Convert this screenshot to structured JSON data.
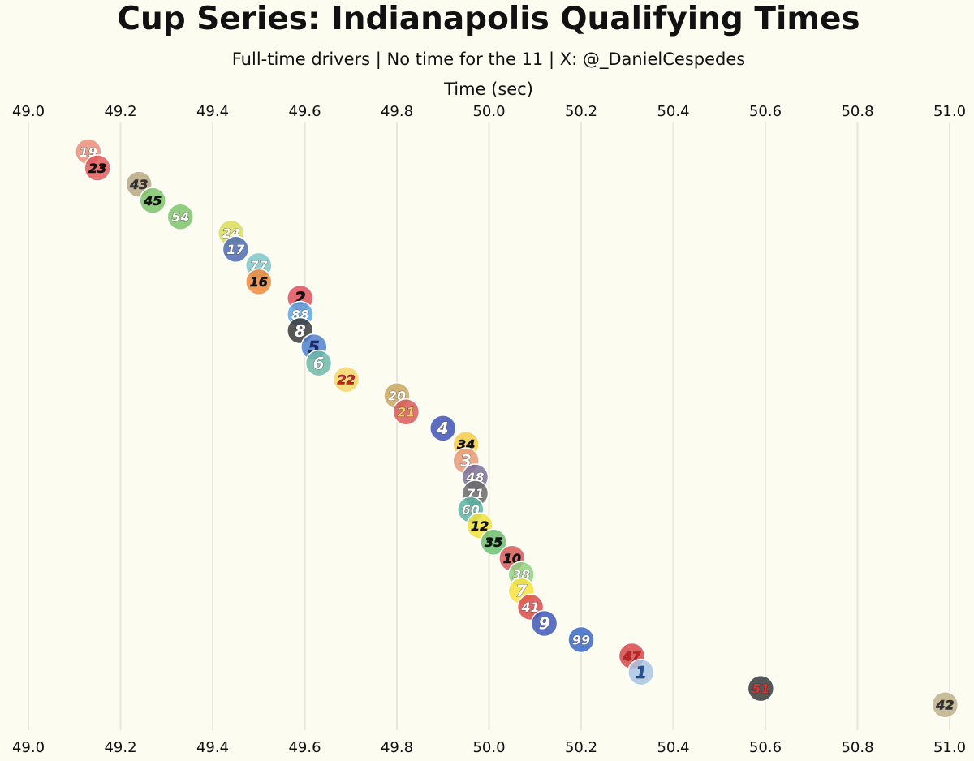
{
  "chart_data": {
    "type": "scatter",
    "title": "Cup Series: Indianapolis Qualifying Times",
    "subtitle": "Full-time drivers | No time for the 11 | X: @_DanielCespedes",
    "xlabel": "Time (sec)",
    "ylabel": "",
    "xlim": [
      49.0,
      51.0
    ],
    "x_ticks": [
      "49.0",
      "49.2",
      "49.4",
      "49.6",
      "49.8",
      "50.0",
      "50.2",
      "50.4",
      "50.6",
      "50.8",
      "51.0"
    ],
    "grid": true,
    "axis_position": "top and bottom",
    "points": [
      {
        "label": "19",
        "x": 49.13,
        "color": "#e8907a",
        "text_color": "#ffffff"
      },
      {
        "label": "23",
        "x": 49.15,
        "color": "#e05a5a",
        "text_color": "#111111"
      },
      {
        "label": "43",
        "x": 49.24,
        "color": "#b8a882",
        "text_color": "#333333"
      },
      {
        "label": "45",
        "x": 49.27,
        "color": "#7cc46a",
        "text_color": "#111111"
      },
      {
        "label": "54",
        "x": 49.33,
        "color": "#7cc46a",
        "text_color": "#ffffff"
      },
      {
        "label": "24",
        "x": 49.44,
        "color": "#d9dc5c",
        "text_color": "#ffffff"
      },
      {
        "label": "17",
        "x": 49.45,
        "color": "#4e6bb4",
        "text_color": "#ffffff"
      },
      {
        "label": "77",
        "x": 49.5,
        "color": "#7ec8c8",
        "text_color": "#ffffff"
      },
      {
        "label": "16",
        "x": 49.5,
        "color": "#ee8a3c",
        "text_color": "#111111"
      },
      {
        "label": "2",
        "x": 49.59,
        "color": "#e0505a",
        "text_color": "#111111"
      },
      {
        "label": "88",
        "x": 49.59,
        "color": "#5aa7e8",
        "text_color": "#ffffff"
      },
      {
        "label": "8",
        "x": 49.59,
        "color": "#3a3a3a",
        "text_color": "#ffffff"
      },
      {
        "label": "5",
        "x": 49.62,
        "color": "#4e80d0",
        "text_color": "#1a2a70"
      },
      {
        "label": "6",
        "x": 49.63,
        "color": "#6fb8a8",
        "text_color": "#ffffff"
      },
      {
        "label": "22",
        "x": 49.69,
        "color": "#f6d66a",
        "text_color": "#cc2222"
      },
      {
        "label": "20",
        "x": 49.8,
        "color": "#c8a860",
        "text_color": "#ffffff"
      },
      {
        "label": "21",
        "x": 49.82,
        "color": "#d85a5a",
        "text_color": "#f0d060"
      },
      {
        "label": "4",
        "x": 49.9,
        "color": "#3e52b8",
        "text_color": "#ffffff"
      },
      {
        "label": "34",
        "x": 49.95,
        "color": "#f8cc4a",
        "text_color": "#111111"
      },
      {
        "label": "3",
        "x": 49.95,
        "color": "#e89a7a",
        "text_color": "#ffffff"
      },
      {
        "label": "48",
        "x": 49.97,
        "color": "#7d6e9a",
        "text_color": "#ffffff"
      },
      {
        "label": "71",
        "x": 49.97,
        "color": "#6a6a6a",
        "text_color": "#ffffff"
      },
      {
        "label": "60",
        "x": 49.96,
        "color": "#5ab4a4",
        "text_color": "#ffffff"
      },
      {
        "label": "12",
        "x": 49.98,
        "color": "#f0e040",
        "text_color": "#111111"
      },
      {
        "label": "35",
        "x": 50.01,
        "color": "#6cc070",
        "text_color": "#111111"
      },
      {
        "label": "10",
        "x": 50.05,
        "color": "#d65a5a",
        "text_color": "#111111"
      },
      {
        "label": "38",
        "x": 50.07,
        "color": "#90d480",
        "text_color": "#ffffff"
      },
      {
        "label": "7",
        "x": 50.07,
        "color": "#f8e040",
        "text_color": "#ffffff"
      },
      {
        "label": "41",
        "x": 50.09,
        "color": "#dc4a4a",
        "text_color": "#ffffff"
      },
      {
        "label": "9",
        "x": 50.12,
        "color": "#4058b8",
        "text_color": "#ffffff"
      },
      {
        "label": "99",
        "x": 50.2,
        "color": "#3a68c8",
        "text_color": "#ffffff"
      },
      {
        "label": "47",
        "x": 50.31,
        "color": "#d64848",
        "text_color": "#d02020"
      },
      {
        "label": "1",
        "x": 50.33,
        "color": "#a8c4e4",
        "text_color": "#2050a0"
      },
      {
        "label": "51",
        "x": 50.59,
        "color": "#3a3a3a",
        "text_color": "#e03030"
      },
      {
        "label": "42",
        "x": 50.99,
        "color": "#c0b088",
        "text_color": "#333333"
      }
    ]
  }
}
